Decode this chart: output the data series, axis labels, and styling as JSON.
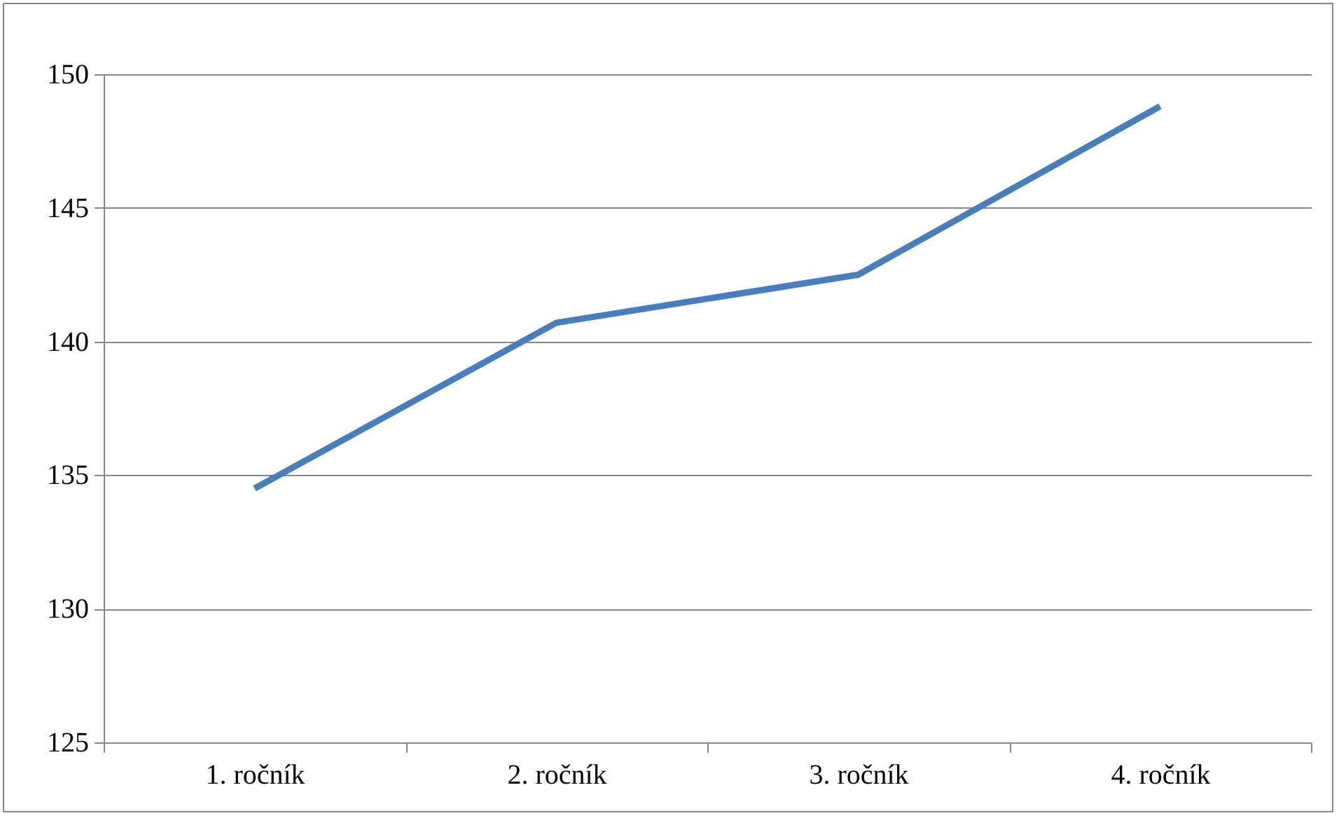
{
  "chart_data": {
    "type": "line",
    "categories": [
      "1.    ročník",
      "2.    ročník",
      "3.    ročník",
      "4.    ročník"
    ],
    "series": [
      {
        "color": "#4a7ebb",
        "values": [
          134.5,
          140.7,
          142.5,
          148.8
        ]
      }
    ],
    "ylim": [
      125,
      150
    ],
    "yticks": [
      125,
      130,
      135,
      140,
      145,
      150
    ],
    "grid": "y"
  }
}
